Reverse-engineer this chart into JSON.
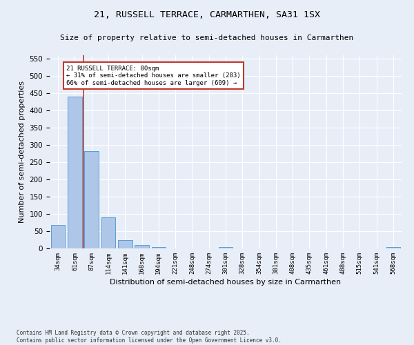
{
  "title": "21, RUSSELL TERRACE, CARMARTHEN, SA31 1SX",
  "subtitle": "Size of property relative to semi-detached houses in Carmarthen",
  "xlabel": "Distribution of semi-detached houses by size in Carmarthen",
  "ylabel": "Number of semi-detached properties",
  "footer_line1": "Contains HM Land Registry data © Crown copyright and database right 2025.",
  "footer_line2": "Contains public sector information licensed under the Open Government Licence v3.0.",
  "categories": [
    "34sqm",
    "61sqm",
    "87sqm",
    "114sqm",
    "141sqm",
    "168sqm",
    "194sqm",
    "221sqm",
    "248sqm",
    "274sqm",
    "301sqm",
    "328sqm",
    "354sqm",
    "381sqm",
    "408sqm",
    "435sqm",
    "461sqm",
    "488sqm",
    "515sqm",
    "541sqm",
    "568sqm"
  ],
  "values": [
    68,
    440,
    283,
    91,
    24,
    11,
    4,
    0,
    0,
    0,
    4,
    0,
    0,
    0,
    0,
    0,
    0,
    0,
    0,
    0,
    4
  ],
  "bar_color": "#aec6e8",
  "bar_edge_color": "#5a9fd4",
  "vline_x": 1.5,
  "vline_color": "#c0392b",
  "annotation_title": "21 RUSSELL TERRACE: 80sqm",
  "annotation_line2": "← 31% of semi-detached houses are smaller (283)",
  "annotation_line3": "66% of semi-detached houses are larger (609) →",
  "annotation_box_color": "#c0392b",
  "ylim": [
    0,
    560
  ],
  "yticks": [
    0,
    50,
    100,
    150,
    200,
    250,
    300,
    350,
    400,
    450,
    500,
    550
  ],
  "background_color": "#e8eef8",
  "grid_color": "#ffffff"
}
